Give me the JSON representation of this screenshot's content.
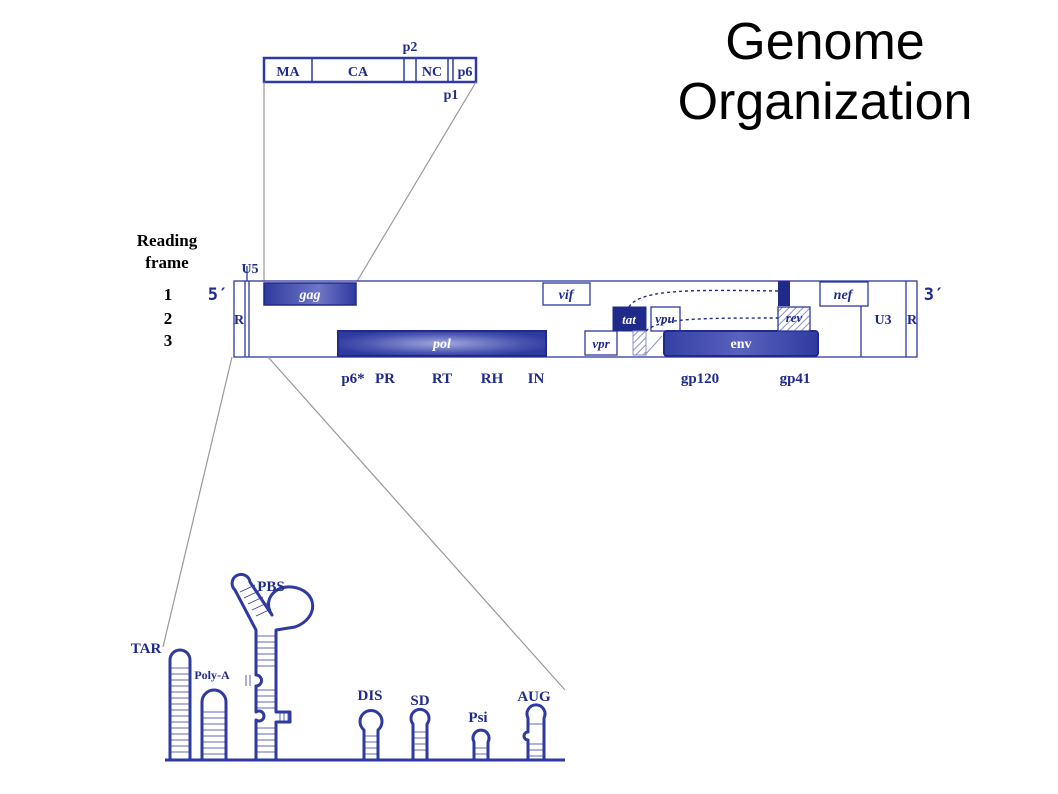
{
  "title": {
    "line1": "Genome",
    "line2": "Organization"
  },
  "gag_polyprotein": {
    "segments": [
      "MA",
      "CA",
      "NC",
      "p6"
    ],
    "label_above": "p2",
    "label_below": "p1"
  },
  "reading_frame": {
    "heading_line1": "Reading",
    "heading_line2": "frame",
    "rows": [
      "1",
      "2",
      "3"
    ]
  },
  "genome": {
    "five_prime": "5′",
    "three_prime": "3′",
    "u5": "U5",
    "r_left": "R",
    "u3": "U3",
    "r_right": "R",
    "genes": {
      "gag": "gag",
      "pol": "pol",
      "vif": "vif",
      "vpr": "vpr",
      "tat": "tat",
      "vpu": "vpu",
      "rev": "rev",
      "env": "env",
      "nef": "nef"
    },
    "products": [
      "p6*",
      "PR",
      "RT",
      "RH",
      "IN",
      "gp120",
      "gp41"
    ]
  },
  "rna_structure": {
    "elements": [
      "TAR",
      "Poly-A",
      "PBS",
      "DIS",
      "SD",
      "Psi",
      "AUG"
    ]
  },
  "colors": {
    "accent": "#2e3a9f",
    "dark": "#1f2a8a",
    "light": "#6f76c6"
  }
}
